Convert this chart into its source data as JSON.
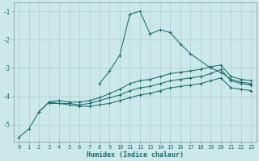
{
  "xlabel": "Humidex (Indice chaleur)",
  "ylabel": "",
  "background_color": "#cce8ea",
  "grid_color": "#aacfd2",
  "line_color": "#1a6e6a",
  "xlim": [
    -0.5,
    23.5
  ],
  "ylim": [
    -5.6,
    -0.7
  ],
  "yticks": [
    -5,
    -4,
    -3,
    -2,
    -1
  ],
  "xticks": [
    0,
    1,
    2,
    3,
    4,
    5,
    6,
    7,
    8,
    9,
    10,
    11,
    12,
    13,
    14,
    15,
    16,
    17,
    18,
    19,
    20,
    21,
    22,
    23
  ],
  "series": [
    [
      null,
      null,
      null,
      null,
      null,
      null,
      null,
      null,
      -3.55,
      -3.1,
      -2.55,
      -1.1,
      -1.0,
      -1.8,
      -1.65,
      -1.75,
      -2.15,
      -2.5,
      null,
      -3.0,
      -3.15,
      -3.4,
      -3.5,
      -3.55
    ],
    [
      null,
      null,
      -4.55,
      -4.2,
      -4.15,
      -4.2,
      -4.2,
      -4.15,
      -4.05,
      -3.9,
      -3.75,
      -3.55,
      -3.45,
      -3.4,
      -3.3,
      -3.2,
      -3.15,
      -3.1,
      -3.05,
      -2.95,
      -2.9,
      -3.3,
      -3.4,
      -3.45
    ],
    [
      null,
      null,
      null,
      -4.25,
      -4.25,
      -4.25,
      -4.3,
      -4.25,
      -4.15,
      -4.05,
      -3.95,
      -3.8,
      -3.7,
      -3.65,
      -3.55,
      -3.45,
      -3.4,
      -3.35,
      -3.3,
      -3.2,
      -3.05,
      -3.45,
      -3.55,
      -3.6
    ],
    [
      -5.45,
      -5.15,
      -4.55,
      -4.2,
      -4.25,
      -4.3,
      -4.35,
      -4.35,
      -4.3,
      -4.25,
      -4.15,
      -4.05,
      -3.95,
      -3.9,
      -3.8,
      -3.7,
      -3.65,
      -3.6,
      -3.55,
      -3.45,
      -3.35,
      -3.7,
      -3.75,
      -3.8
    ]
  ]
}
